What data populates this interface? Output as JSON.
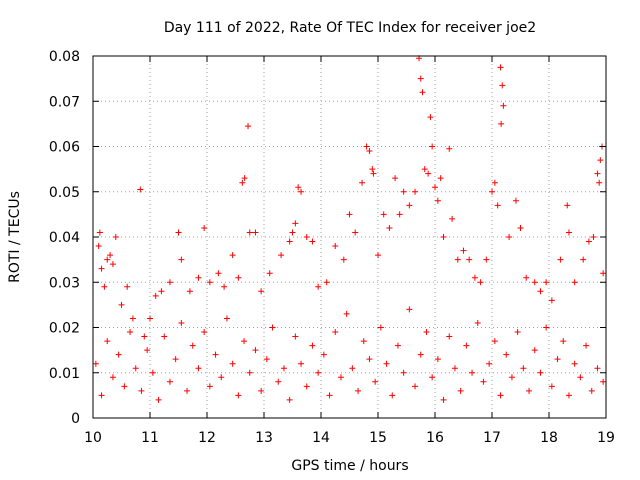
{
  "chart_data": {
    "type": "scatter",
    "title": "Day 111 of 2022, Rate Of TEC Index for receiver joe2",
    "xlabel": "GPS time / hours",
    "ylabel": "ROTI / TECUs",
    "xlim": [
      10,
      19
    ],
    "ylim": [
      0,
      0.08
    ],
    "x_ticks": [
      10,
      11,
      12,
      13,
      14,
      15,
      16,
      17,
      18,
      19
    ],
    "y_ticks": [
      0,
      0.01,
      0.02,
      0.03,
      0.04,
      0.05,
      0.06,
      0.07,
      0.08
    ],
    "x_tick_labels": [
      "10",
      "11",
      "12",
      "13",
      "14",
      "15",
      "16",
      "17",
      "18",
      "19"
    ],
    "y_tick_labels": [
      "0",
      "0.01",
      "0.02",
      "0.03",
      "0.04",
      "0.05",
      "0.06",
      "0.07",
      "0.08"
    ],
    "grid": true,
    "marker": "+",
    "series_color": "#ff0000",
    "series": [
      {
        "name": "ROTI",
        "points": [
          [
            10.1,
            0.038
          ],
          [
            10.12,
            0.041
          ],
          [
            10.15,
            0.033
          ],
          [
            10.2,
            0.029
          ],
          [
            10.25,
            0.035
          ],
          [
            10.3,
            0.036
          ],
          [
            10.35,
            0.034
          ],
          [
            10.4,
            0.04
          ],
          [
            10.5,
            0.025
          ],
          [
            10.6,
            0.029
          ],
          [
            10.7,
            0.022
          ],
          [
            10.83,
            0.0505
          ],
          [
            10.9,
            0.018
          ],
          [
            11.0,
            0.022
          ],
          [
            11.1,
            0.027
          ],
          [
            11.2,
            0.028
          ],
          [
            11.35,
            0.03
          ],
          [
            11.5,
            0.041
          ],
          [
            11.55,
            0.035
          ],
          [
            11.7,
            0.028
          ],
          [
            11.85,
            0.031
          ],
          [
            11.95,
            0.042
          ],
          [
            12.05,
            0.03
          ],
          [
            12.2,
            0.032
          ],
          [
            12.3,
            0.029
          ],
          [
            12.45,
            0.036
          ],
          [
            12.55,
            0.031
          ],
          [
            12.62,
            0.052
          ],
          [
            12.66,
            0.053
          ],
          [
            12.72,
            0.0645
          ],
          [
            12.75,
            0.041
          ],
          [
            12.85,
            0.041
          ],
          [
            12.95,
            0.028
          ],
          [
            13.1,
            0.032
          ],
          [
            13.3,
            0.036
          ],
          [
            13.45,
            0.039
          ],
          [
            13.5,
            0.041
          ],
          [
            13.55,
            0.043
          ],
          [
            13.6,
            0.051
          ],
          [
            13.65,
            0.05
          ],
          [
            13.75,
            0.04
          ],
          [
            13.85,
            0.039
          ],
          [
            13.95,
            0.029
          ],
          [
            14.1,
            0.03
          ],
          [
            14.25,
            0.038
          ],
          [
            14.4,
            0.035
          ],
          [
            14.5,
            0.045
          ],
          [
            14.6,
            0.041
          ],
          [
            14.72,
            0.052
          ],
          [
            14.8,
            0.06
          ],
          [
            14.85,
            0.059
          ],
          [
            14.9,
            0.055
          ],
          [
            14.92,
            0.054
          ],
          [
            15.0,
            0.036
          ],
          [
            15.1,
            0.045
          ],
          [
            15.2,
            0.042
          ],
          [
            15.3,
            0.053
          ],
          [
            15.38,
            0.045
          ],
          [
            15.45,
            0.05
          ],
          [
            15.55,
            0.047
          ],
          [
            15.65,
            0.05
          ],
          [
            15.72,
            0.0795
          ],
          [
            15.75,
            0.075
          ],
          [
            15.78,
            0.072
          ],
          [
            15.82,
            0.055
          ],
          [
            15.88,
            0.054
          ],
          [
            15.92,
            0.0665
          ],
          [
            15.95,
            0.06
          ],
          [
            16.0,
            0.051
          ],
          [
            16.05,
            0.048
          ],
          [
            16.1,
            0.053
          ],
          [
            16.15,
            0.04
          ],
          [
            16.25,
            0.0595
          ],
          [
            16.3,
            0.044
          ],
          [
            16.4,
            0.035
          ],
          [
            16.5,
            0.037
          ],
          [
            16.6,
            0.035
          ],
          [
            16.7,
            0.031
          ],
          [
            16.8,
            0.03
          ],
          [
            16.9,
            0.035
          ],
          [
            17.0,
            0.05
          ],
          [
            17.05,
            0.052
          ],
          [
            17.1,
            0.047
          ],
          [
            17.15,
            0.0775
          ],
          [
            17.18,
            0.0735
          ],
          [
            17.2,
            0.069
          ],
          [
            17.16,
            0.065
          ],
          [
            17.3,
            0.04
          ],
          [
            17.42,
            0.048
          ],
          [
            17.5,
            0.042
          ],
          [
            17.6,
            0.031
          ],
          [
            17.75,
            0.03
          ],
          [
            17.85,
            0.028
          ],
          [
            17.95,
            0.03
          ],
          [
            18.05,
            0.026
          ],
          [
            18.2,
            0.035
          ],
          [
            18.32,
            0.047
          ],
          [
            18.35,
            0.041
          ],
          [
            18.45,
            0.03
          ],
          [
            18.6,
            0.035
          ],
          [
            18.7,
            0.039
          ],
          [
            18.78,
            0.04
          ],
          [
            18.85,
            0.054
          ],
          [
            18.88,
            0.052
          ],
          [
            18.9,
            0.057
          ],
          [
            18.93,
            0.06
          ],
          [
            18.95,
            0.032
          ],
          [
            10.05,
            0.012
          ],
          [
            10.15,
            0.005
          ],
          [
            10.25,
            0.017
          ],
          [
            10.35,
            0.009
          ],
          [
            10.45,
            0.014
          ],
          [
            10.55,
            0.007
          ],
          [
            10.65,
            0.019
          ],
          [
            10.75,
            0.011
          ],
          [
            10.85,
            0.006
          ],
          [
            10.95,
            0.015
          ],
          [
            11.05,
            0.01
          ],
          [
            11.15,
            0.004
          ],
          [
            11.25,
            0.018
          ],
          [
            11.35,
            0.008
          ],
          [
            11.45,
            0.013
          ],
          [
            11.55,
            0.021
          ],
          [
            11.65,
            0.006
          ],
          [
            11.75,
            0.016
          ],
          [
            11.85,
            0.011
          ],
          [
            11.95,
            0.019
          ],
          [
            12.05,
            0.007
          ],
          [
            12.15,
            0.014
          ],
          [
            12.25,
            0.009
          ],
          [
            12.35,
            0.022
          ],
          [
            12.45,
            0.012
          ],
          [
            12.55,
            0.005
          ],
          [
            12.65,
            0.017
          ],
          [
            12.75,
            0.01
          ],
          [
            12.85,
            0.015
          ],
          [
            12.95,
            0.006
          ],
          [
            13.05,
            0.013
          ],
          [
            13.15,
            0.02
          ],
          [
            13.25,
            0.008
          ],
          [
            13.35,
            0.011
          ],
          [
            13.45,
            0.004
          ],
          [
            13.55,
            0.018
          ],
          [
            13.65,
            0.012
          ],
          [
            13.75,
            0.007
          ],
          [
            13.85,
            0.016
          ],
          [
            13.95,
            0.01
          ],
          [
            14.05,
            0.014
          ],
          [
            14.15,
            0.005
          ],
          [
            14.25,
            0.019
          ],
          [
            14.35,
            0.009
          ],
          [
            14.45,
            0.023
          ],
          [
            14.55,
            0.011
          ],
          [
            14.65,
            0.006
          ],
          [
            14.75,
            0.017
          ],
          [
            14.85,
            0.013
          ],
          [
            14.95,
            0.008
          ],
          [
            15.05,
            0.02
          ],
          [
            15.15,
            0.012
          ],
          [
            15.25,
            0.005
          ],
          [
            15.35,
            0.016
          ],
          [
            15.45,
            0.01
          ],
          [
            15.55,
            0.024
          ],
          [
            15.65,
            0.007
          ],
          [
            15.75,
            0.014
          ],
          [
            15.85,
            0.019
          ],
          [
            15.95,
            0.009
          ],
          [
            16.05,
            0.013
          ],
          [
            16.15,
            0.004
          ],
          [
            16.25,
            0.018
          ],
          [
            16.35,
            0.011
          ],
          [
            16.45,
            0.006
          ],
          [
            16.55,
            0.016
          ],
          [
            16.65,
            0.01
          ],
          [
            16.75,
            0.021
          ],
          [
            16.85,
            0.008
          ],
          [
            16.95,
            0.012
          ],
          [
            17.05,
            0.017
          ],
          [
            17.15,
            0.005
          ],
          [
            17.25,
            0.014
          ],
          [
            17.35,
            0.009
          ],
          [
            17.45,
            0.019
          ],
          [
            17.55,
            0.011
          ],
          [
            17.65,
            0.006
          ],
          [
            17.75,
            0.015
          ],
          [
            17.85,
            0.01
          ],
          [
            17.95,
            0.02
          ],
          [
            18.05,
            0.007
          ],
          [
            18.15,
            0.013
          ],
          [
            18.25,
            0.017
          ],
          [
            18.35,
            0.005
          ],
          [
            18.45,
            0.012
          ],
          [
            18.55,
            0.009
          ],
          [
            18.65,
            0.016
          ],
          [
            18.75,
            0.006
          ],
          [
            18.85,
            0.011
          ],
          [
            18.95,
            0.008
          ]
        ]
      }
    ]
  }
}
